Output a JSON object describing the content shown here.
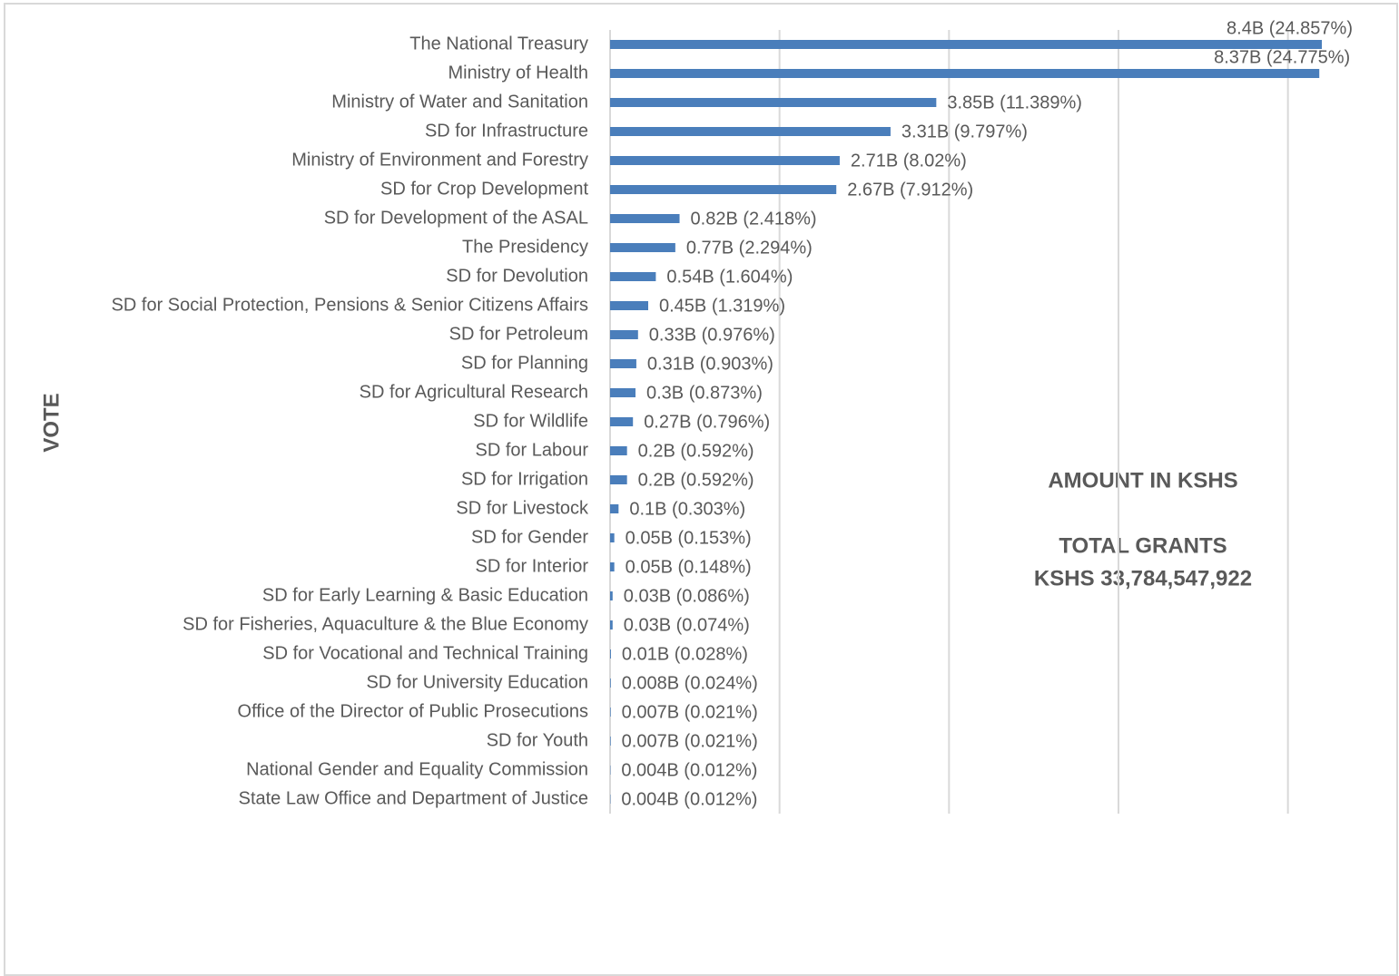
{
  "chart_data": {
    "type": "barh",
    "y_label": "VOTE",
    "annotations": [
      "AMOUNT IN KSHS",
      "TOTAL GRANTS",
      "KSHS 33,784,547,922"
    ],
    "categories": [
      "The National Treasury",
      "Ministry of Health",
      "Ministry of Water and Sanitation",
      "SD for Infrastructure",
      "Ministry of Environment and Forestry",
      "SD for Crop Development",
      "SD for Development of the ASAL",
      "The Presidency",
      "SD for Devolution",
      "SD for Social Protection, Pensions & Senior Citizens Affairs",
      "SD for Petroleum",
      "SD for Planning",
      "SD for Agricultural Research",
      "SD for Wildlife",
      "SD for Labour",
      "SD for Irrigation",
      "SD for Livestock",
      "SD for Gender",
      "SD for Interior",
      "SD for Early Learning & Basic Education",
      "SD for Fisheries, Aquaculture & the Blue Economy",
      "SD for Vocational and Technical Training",
      "SD for University Education",
      "Office of the Director of Public Prosecutions",
      "SD for Youth",
      "National Gender and Equality Commission",
      "State Law Office and Department of Justice"
    ],
    "values": [
      8.4,
      8.37,
      3.85,
      3.31,
      2.71,
      2.67,
      0.82,
      0.77,
      0.54,
      0.45,
      0.33,
      0.31,
      0.3,
      0.27,
      0.2,
      0.2,
      0.1,
      0.05,
      0.05,
      0.03,
      0.03,
      0.01,
      0.008,
      0.007,
      0.007,
      0.004,
      0.004
    ],
    "value_labels": [
      "8.4B (24.857%)",
      "8.37B (24.775%)",
      "3.85B (11.389%)",
      "3.31B (9.797%)",
      "2.71B (8.02%)",
      "2.67B (7.912%)",
      "0.82B (2.418%)",
      "0.77B (2.294%)",
      "0.54B (1.604%)",
      "0.45B (1.319%)",
      "0.33B (0.976%)",
      "0.31B (0.903%)",
      "0.3B (0.873%)",
      "0.27B (0.796%)",
      "0.2B (0.592%)",
      "0.2B (0.592%)",
      "0.1B (0.303%)",
      "0.05B (0.153%)",
      "0.05B (0.148%)",
      "0.03B (0.086%)",
      "0.03B (0.074%)",
      "0.01B (0.028%)",
      "0.008B (0.024%)",
      "0.007B (0.021%)",
      "0.007B (0.021%)",
      "0.004B (0.012%)",
      "0.004B (0.012%)"
    ],
    "color": "#4a7ebb",
    "xlim": [
      0,
      9
    ],
    "xticks": [
      0,
      2,
      4,
      6,
      8
    ],
    "grid": true
  }
}
